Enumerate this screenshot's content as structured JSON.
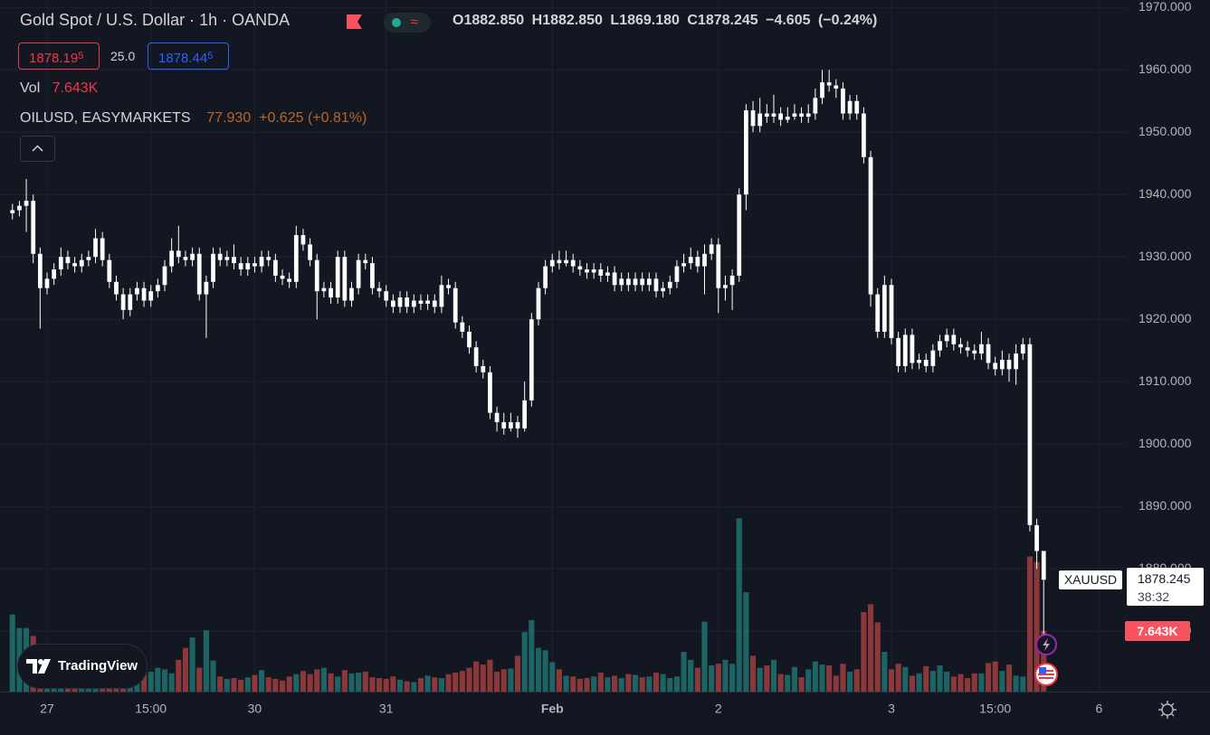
{
  "chart_data": {
    "type": "candlestick",
    "title": "Gold Spot / U.S. Dollar · 1h · OANDA",
    "symbol": "XAUUSD",
    "countdown": "38:32",
    "header": {
      "ohlc": [
        "O1882.850",
        "H1882.850",
        "L1869.180",
        "C1878.245"
      ],
      "change": "−4.605 (−0.24%)",
      "bid": [
        "1878.19",
        "5"
      ],
      "spread": "25.0",
      "ask": [
        "1878.44",
        "5"
      ],
      "volume_name": "Vol",
      "volume_text": "7.643K",
      "compare": {
        "name": "OILUSD, EASYMARKETS",
        "price": "77.930",
        "change": "+0.625 (+0.81%)"
      },
      "brand": "TradingView"
    },
    "candle_color": "#ffffff",
    "up_color": "rgba(38,166,154,0.55)",
    "down_color": "rgba(239,83,80,0.55)",
    "grid": true,
    "xlim": [
      -1.8,
      161
    ],
    "xticks": [
      {
        "value": 5,
        "label": "27"
      },
      {
        "value": 20,
        "label": "15:00"
      },
      {
        "value": 35,
        "label": "30"
      },
      {
        "value": 54,
        "label": "31"
      },
      {
        "value": 78,
        "label": "Feb"
      },
      {
        "value": 102,
        "label": "2"
      },
      {
        "value": 127,
        "label": "3"
      },
      {
        "value": 142,
        "label": "15:00"
      },
      {
        "value": 157,
        "label": "6"
      }
    ],
    "ylim": [
      1860.3,
      1971.2
    ],
    "yticks": [
      {
        "value": 1970,
        "label": "1970.000"
      },
      {
        "value": 1960,
        "label": "1960.000"
      },
      {
        "value": 1950,
        "label": "1950.000"
      },
      {
        "value": 1940,
        "label": "1940.000"
      },
      {
        "value": 1930,
        "label": "1930.000"
      },
      {
        "value": 1920,
        "label": "1920.000"
      },
      {
        "value": 1910,
        "label": "1910.000"
      },
      {
        "value": 1900,
        "label": "1900.000"
      },
      {
        "value": 1890,
        "label": "1890.000"
      },
      {
        "value": 1880,
        "label": "1880.000"
      },
      {
        "value": 1870,
        "label": "1870.000"
      }
    ],
    "y2lim": [
      0,
      87000
    ],
    "ohlc": [
      [
        1937,
        1938.5,
        1936,
        1937.5
      ],
      [
        1937.5,
        1939,
        1936.5,
        1938.2
      ],
      [
        1938.2,
        1942.5,
        1934,
        1939
      ],
      [
        1939,
        1940,
        1929,
        1930.5
      ],
      [
        1930.5,
        1931.5,
        1918.5,
        1925
      ],
      [
        1925,
        1927.5,
        1924,
        1926.5
      ],
      [
        1926.5,
        1929,
        1925.5,
        1928
      ],
      [
        1928,
        1931.5,
        1927,
        1930
      ],
      [
        1930,
        1931,
        1928,
        1929
      ],
      [
        1929,
        1930,
        1927.5,
        1928.5
      ],
      [
        1928.5,
        1930.5,
        1927.5,
        1929.5
      ],
      [
        1929.5,
        1931,
        1928.5,
        1930
      ],
      [
        1930,
        1934.5,
        1929,
        1933
      ],
      [
        1933,
        1934,
        1928.5,
        1929.5
      ],
      [
        1929.5,
        1930.5,
        1925,
        1926
      ],
      [
        1926,
        1927,
        1923,
        1924
      ],
      [
        1924,
        1925,
        1920,
        1921.5
      ],
      [
        1921.5,
        1925,
        1920.5,
        1924
      ],
      [
        1924,
        1926,
        1923,
        1925
      ],
      [
        1925,
        1926,
        1922,
        1923
      ],
      [
        1923,
        1925.5,
        1922,
        1924.5
      ],
      [
        1924.5,
        1926.5,
        1923.5,
        1925.5
      ],
      [
        1925.5,
        1929.5,
        1924.5,
        1928.5
      ],
      [
        1928.5,
        1933,
        1927.5,
        1931
      ],
      [
        1931,
        1935,
        1929,
        1930
      ],
      [
        1930,
        1931,
        1928.5,
        1929.5
      ],
      [
        1929.5,
        1931.5,
        1928.5,
        1930.5
      ],
      [
        1930.5,
        1931.5,
        1923,
        1924
      ],
      [
        1924,
        1927,
        1917,
        1926
      ],
      [
        1926,
        1931.5,
        1925,
        1930.5
      ],
      [
        1930.5,
        1931.5,
        1928.5,
        1929.5
      ],
      [
        1929.5,
        1931,
        1928.5,
        1930
      ],
      [
        1930,
        1932,
        1928,
        1929
      ],
      [
        1929,
        1930,
        1927,
        1928
      ],
      [
        1928,
        1930,
        1927,
        1929
      ],
      [
        1929,
        1930,
        1927.5,
        1928.5
      ],
      [
        1928.5,
        1931,
        1927.5,
        1930
      ],
      [
        1930,
        1931,
        1928.5,
        1929.5
      ],
      [
        1929.5,
        1930.5,
        1926,
        1927
      ],
      [
        1927,
        1928,
        1925.5,
        1926.5
      ],
      [
        1926.5,
        1927.5,
        1925,
        1926
      ],
      [
        1926,
        1935,
        1925,
        1933.5
      ],
      [
        1933.5,
        1934.5,
        1931,
        1932
      ],
      [
        1932,
        1933,
        1928.5,
        1929.5
      ],
      [
        1929.5,
        1930.5,
        1920,
        1924.5
      ],
      [
        1924.5,
        1926,
        1923.5,
        1925
      ],
      [
        1925,
        1926,
        1922.5,
        1923.5
      ],
      [
        1923.5,
        1931,
        1922.5,
        1930
      ],
      [
        1930,
        1931,
        1922,
        1923
      ],
      [
        1923,
        1926,
        1922,
        1925
      ],
      [
        1925,
        1930.5,
        1924,
        1929.5
      ],
      [
        1929.5,
        1930.5,
        1928,
        1929
      ],
      [
        1929,
        1930,
        1924,
        1925
      ],
      [
        1925,
        1926,
        1923.5,
        1924.5
      ],
      [
        1924.5,
        1925.5,
        1922,
        1923
      ],
      [
        1923,
        1924,
        1921,
        1922
      ],
      [
        1922,
        1924.5,
        1921,
        1923.5
      ],
      [
        1923.5,
        1924.5,
        1921,
        1922
      ],
      [
        1922,
        1924,
        1921,
        1923
      ],
      [
        1923,
        1924,
        1921.5,
        1922.5
      ],
      [
        1922.5,
        1924,
        1921.5,
        1923
      ],
      [
        1923,
        1924,
        1921,
        1922
      ],
      [
        1922,
        1927,
        1921,
        1925.5
      ],
      [
        1925.5,
        1926.5,
        1924,
        1925
      ],
      [
        1925,
        1926,
        1918.5,
        1919.5
      ],
      [
        1919.5,
        1920.5,
        1917,
        1918
      ],
      [
        1918,
        1919,
        1914.5,
        1915.5
      ],
      [
        1915.5,
        1916.5,
        1911.5,
        1912.5
      ],
      [
        1912.5,
        1913.5,
        1910.5,
        1911.5
      ],
      [
        1911.5,
        1912.5,
        1904,
        1905
      ],
      [
        1905,
        1906,
        1902,
        1903.5
      ],
      [
        1903.5,
        1905,
        1901.5,
        1902.5
      ],
      [
        1902.5,
        1905,
        1902,
        1903.5
      ],
      [
        1903.5,
        1904.5,
        1901,
        1902.5
      ],
      [
        1902.5,
        1910,
        1902,
        1907
      ],
      [
        1907,
        1921,
        1906,
        1920
      ],
      [
        1920,
        1926,
        1919,
        1925
      ],
      [
        1925,
        1929.5,
        1924,
        1928.5
      ],
      [
        1928.5,
        1930.5,
        1927.5,
        1929.5
      ],
      [
        1929.5,
        1931,
        1928,
        1929
      ],
      [
        1929,
        1931,
        1928.5,
        1929.5
      ],
      [
        1929.5,
        1930.5,
        1927.5,
        1928.5
      ],
      [
        1928.5,
        1929.5,
        1927,
        1928
      ],
      [
        1928,
        1929,
        1926.5,
        1927.5
      ],
      [
        1927.5,
        1929,
        1926.5,
        1928
      ],
      [
        1928,
        1929,
        1926,
        1927
      ],
      [
        1927,
        1928.5,
        1926,
        1927.5
      ],
      [
        1927.5,
        1928.5,
        1924.5,
        1925.5
      ],
      [
        1925.5,
        1927.5,
        1924.5,
        1926.5
      ],
      [
        1926.5,
        1927.5,
        1924.5,
        1925.5
      ],
      [
        1925.5,
        1927.5,
        1924.5,
        1926.5
      ],
      [
        1926.5,
        1927.5,
        1924.5,
        1925.5
      ],
      [
        1925.5,
        1927.5,
        1924.5,
        1926.5
      ],
      [
        1926.5,
        1927.5,
        1923.5,
        1924.5
      ],
      [
        1924.5,
        1926,
        1923.5,
        1925
      ],
      [
        1925,
        1927,
        1924,
        1926
      ],
      [
        1926,
        1929.5,
        1925,
        1928.5
      ],
      [
        1928.5,
        1930.5,
        1927.5,
        1929
      ],
      [
        1929,
        1931.5,
        1928,
        1930
      ],
      [
        1930,
        1931,
        1927.5,
        1928.5
      ],
      [
        1928.5,
        1932,
        1924,
        1930.5
      ],
      [
        1930.5,
        1933,
        1929.5,
        1932
      ],
      [
        1932,
        1933,
        1921,
        1925
      ],
      [
        1925,
        1927,
        1923,
        1925.5
      ],
      [
        1925.5,
        1928,
        1921.5,
        1927
      ],
      [
        1927,
        1941,
        1926,
        1940
      ],
      [
        1940,
        1954.5,
        1937.5,
        1953.5
      ],
      [
        1953.5,
        1955,
        1950,
        1951
      ],
      [
        1951,
        1955.5,
        1950,
        1953
      ],
      [
        1953,
        1954.5,
        1951.5,
        1952.5
      ],
      [
        1952.5,
        1956,
        1951.5,
        1953
      ],
      [
        1953,
        1954,
        1951,
        1952
      ],
      [
        1952,
        1954,
        1951.5,
        1952.5
      ],
      [
        1952.5,
        1954.5,
        1952,
        1953
      ],
      [
        1953,
        1954,
        1951.5,
        1952.5
      ],
      [
        1952.5,
        1954.5,
        1951.5,
        1953
      ],
      [
        1953,
        1957,
        1952,
        1955.5
      ],
      [
        1955.5,
        1960,
        1954.5,
        1958
      ],
      [
        1958,
        1960,
        1956.5,
        1957.5
      ],
      [
        1957.5,
        1958.5,
        1955.5,
        1957
      ],
      [
        1957,
        1958,
        1952,
        1953
      ],
      [
        1953,
        1956,
        1952,
        1955
      ],
      [
        1955,
        1956,
        1952,
        1953
      ],
      [
        1953,
        1954,
        1945,
        1946
      ],
      [
        1946,
        1947,
        1922,
        1924
      ],
      [
        1924,
        1925,
        1917,
        1918
      ],
      [
        1918,
        1927,
        1917,
        1925.5
      ],
      [
        1925.5,
        1926.5,
        1916,
        1917
      ],
      [
        1917,
        1918,
        1911.5,
        1912.5
      ],
      [
        1912.5,
        1918.5,
        1911.5,
        1917.5
      ],
      [
        1917.5,
        1918.5,
        1912,
        1913
      ],
      [
        1913,
        1914.5,
        1912,
        1913.5
      ],
      [
        1913.5,
        1914.5,
        1911.5,
        1912.5
      ],
      [
        1912.5,
        1916,
        1911.5,
        1915
      ],
      [
        1915,
        1917.5,
        1914,
        1916.5
      ],
      [
        1916.5,
        1918.5,
        1915.5,
        1917.5
      ],
      [
        1917.5,
        1918.5,
        1915,
        1916
      ],
      [
        1916,
        1917,
        1914.5,
        1915.5
      ],
      [
        1915.5,
        1916.5,
        1914,
        1915
      ],
      [
        1915,
        1916,
        1913.5,
        1914.5
      ],
      [
        1914.5,
        1918,
        1913.5,
        1916
      ],
      [
        1916,
        1917,
        1912,
        1913
      ],
      [
        1913,
        1914,
        1911,
        1912
      ],
      [
        1912,
        1915,
        1911,
        1913.5
      ],
      [
        1913.5,
        1914.5,
        1910,
        1912
      ],
      [
        1912,
        1916,
        1909.5,
        1914.5
      ],
      [
        1914.5,
        1917,
        1913.5,
        1916
      ],
      [
        1916,
        1917,
        1886,
        1887
      ],
      [
        1887,
        1888,
        1880,
        1882.85
      ],
      [
        1882.85,
        1882.85,
        1869.18,
        1878.245
      ]
    ],
    "volume": {
      "name": "Vol",
      "label": "7.643K",
      "values": [
        9700,
        8000,
        8000,
        7000,
        3500,
        2500,
        2200,
        2000,
        2300,
        1800,
        1500,
        1600,
        1800,
        1500,
        1700,
        2000,
        2600,
        1900,
        1500,
        2200,
        2500,
        3000,
        2800,
        2300,
        4000,
        5500,
        6800,
        3000,
        7700,
        3900,
        1900,
        1600,
        1700,
        1500,
        1800,
        2100,
        2700,
        1800,
        1600,
        1400,
        1900,
        2200,
        2600,
        2200,
        2800,
        3000,
        2300,
        1900,
        2700,
        2300,
        2400,
        2500,
        1800,
        1700,
        1600,
        1900,
        1500,
        1300,
        1200,
        1700,
        2000,
        1800,
        1700,
        2200,
        2400,
        2600,
        3000,
        3800,
        3400,
        4000,
        2500,
        2800,
        2900,
        4500,
        7500,
        9000,
        5500,
        5200,
        3700,
        2800,
        2000,
        1900,
        1600,
        1700,
        1900,
        2400,
        1800,
        2000,
        1700,
        2200,
        2100,
        1800,
        1900,
        2400,
        2200,
        1700,
        1900,
        5000,
        4000,
        3000,
        8800,
        3300,
        3500,
        4000,
        3500,
        21800,
        12500,
        4500,
        3000,
        3300,
        4000,
        2200,
        2100,
        3100,
        1800,
        2800,
        3800,
        3400,
        3300,
        2000,
        3500,
        2500,
        2800,
        10000,
        11000,
        8700,
        5000,
        2800,
        3500,
        3100,
        2000,
        2300,
        3200,
        2600,
        3300,
        2500,
        1900,
        2200,
        1700,
        2300,
        2300,
        3600,
        3800,
        2600,
        3400,
        2000,
        1900,
        17000,
        16300,
        7643
      ]
    }
  }
}
